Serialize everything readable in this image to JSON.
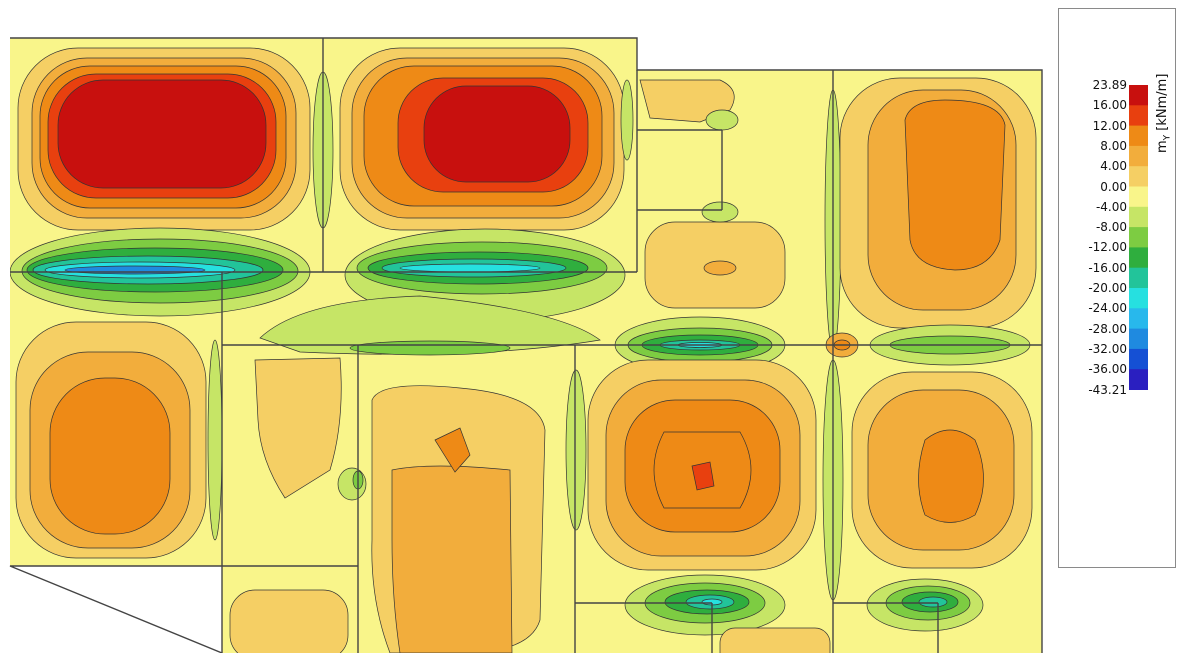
{
  "legend": {
    "title": "m",
    "subscript": "Y",
    "unit": "[kNm/m]",
    "labels": [
      "23.89",
      "16.00",
      "12.00",
      "8.00",
      "4.00",
      "0.00",
      "-4.00",
      "-8.00",
      "-12.00",
      "-16.00",
      "-20.00",
      "-24.00",
      "-28.00",
      "-32.00",
      "-36.00",
      "-43.21"
    ],
    "colors": [
      "#c8100e",
      "#e8400f",
      "#ee8a16",
      "#f2ad3c",
      "#f5cf64",
      "#f9f58a",
      "#c6e566",
      "#7dcc42",
      "#2fae3e",
      "#22c49a",
      "#26e0e0",
      "#28b8ec",
      "#1f8ae0",
      "#1550d4",
      "#2a1fc0"
    ]
  }
}
